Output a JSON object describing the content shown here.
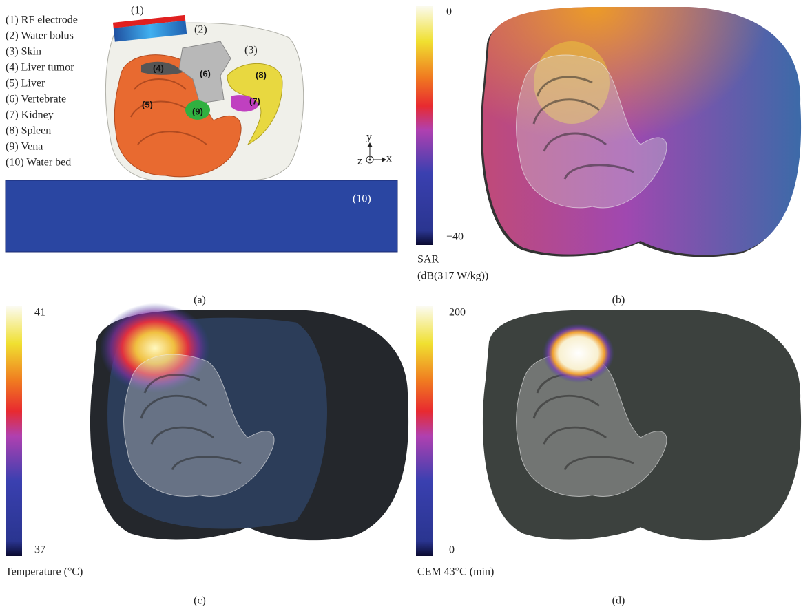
{
  "panel_a": {
    "legend": [
      "(1) RF electrode",
      "(2) Water bolus",
      "(3) Skin",
      "(4) Liver tumor",
      "(5) Liver",
      "(6) Vertebrate",
      "(7) Kidney",
      "(8) Spleen",
      "(9) Vena",
      "(10) Water bed"
    ],
    "callouts": [
      "(1)",
      "(2)",
      "(3)",
      "(10)"
    ],
    "organ_labels": [
      "(4)",
      "(5)",
      "(6)",
      "(7)",
      "(8)",
      "(9)"
    ],
    "axes": [
      "y",
      "z",
      "x"
    ],
    "caption": "(a)"
  },
  "panel_b": {
    "colorbar_max": "0",
    "colorbar_min": "−40",
    "colorbar_title": [
      "SAR",
      "(dB(317 W/kg))"
    ],
    "caption": "(b)"
  },
  "panel_c": {
    "colorbar_max": "41",
    "colorbar_min": "37",
    "colorbar_title": "Temperature (°C)",
    "caption": "(c)"
  },
  "panel_d": {
    "colorbar_max": "200",
    "colorbar_min": "0",
    "colorbar_title": "CEM 43°C (min)",
    "caption": "(d)"
  }
}
